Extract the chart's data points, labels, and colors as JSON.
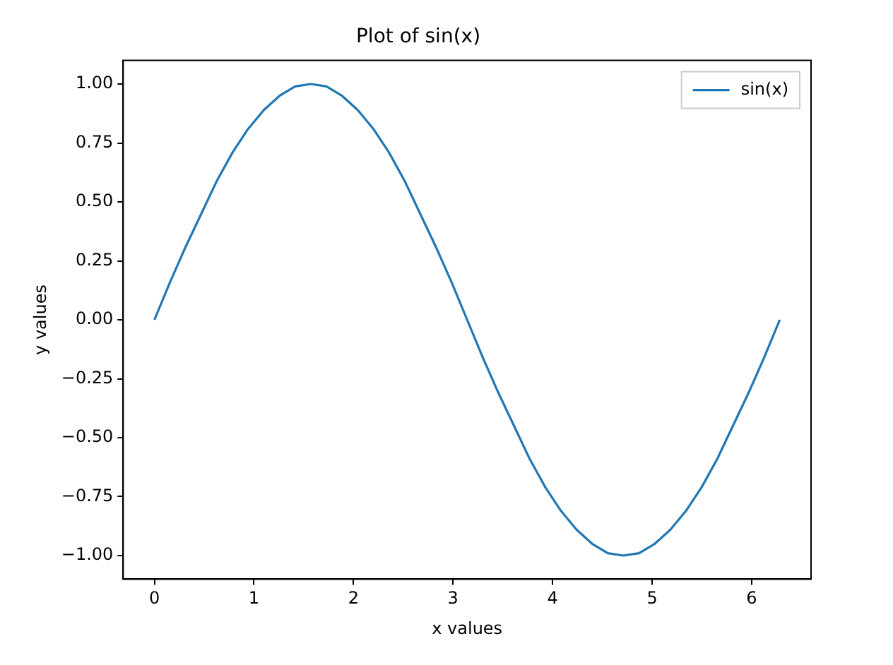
{
  "chart_data": {
    "type": "line",
    "title": "Plot of sin(x)",
    "xlabel": "x values",
    "ylabel": "y values",
    "x": [
      0,
      0.157,
      0.314,
      0.471,
      0.628,
      0.785,
      0.942,
      1.1,
      1.257,
      1.414,
      1.571,
      1.728,
      1.885,
      2.042,
      2.199,
      2.356,
      2.513,
      2.67,
      2.827,
      2.985,
      3.142,
      3.299,
      3.456,
      3.613,
      3.77,
      3.927,
      4.084,
      4.241,
      4.398,
      4.555,
      4.712,
      4.869,
      5.027,
      5.184,
      5.341,
      5.498,
      5.655,
      5.812,
      5.969,
      6.126,
      6.283
    ],
    "series": [
      {
        "name": "sin(x)",
        "color": "#1f77b4",
        "values": [
          0,
          0.16,
          0.31,
          0.45,
          0.59,
          0.71,
          0.81,
          0.89,
          0.95,
          0.99,
          1,
          0.99,
          0.95,
          0.89,
          0.81,
          0.71,
          0.59,
          0.45,
          0.31,
          0.16,
          0,
          -0.16,
          -0.31,
          -0.45,
          -0.59,
          -0.71,
          -0.81,
          -0.89,
          -0.95,
          -0.99,
          -1,
          -0.99,
          -0.95,
          -0.89,
          -0.81,
          -0.71,
          -0.59,
          -0.45,
          -0.31,
          -0.16,
          0
        ]
      }
    ],
    "xlim": [
      -0.314,
      6.597
    ],
    "ylim": [
      -1.1,
      1.1
    ],
    "xticks": [
      0,
      1,
      2,
      3,
      4,
      5,
      6
    ],
    "yticks": [
      {
        "value": -1,
        "label": "−1.00"
      },
      {
        "value": -0.75,
        "label": "−0.75"
      },
      {
        "value": -0.5,
        "label": "−0.50"
      },
      {
        "value": -0.25,
        "label": "−0.25"
      },
      {
        "value": 0,
        "label": "0.00"
      },
      {
        "value": 0.25,
        "label": "0.25"
      },
      {
        "value": 0.5,
        "label": "0.50"
      },
      {
        "value": 0.75,
        "label": "0.75"
      },
      {
        "value": 1,
        "label": "1.00"
      }
    ],
    "grid": false,
    "legend": "top right",
    "marker": "none",
    "line_style": "solid"
  }
}
